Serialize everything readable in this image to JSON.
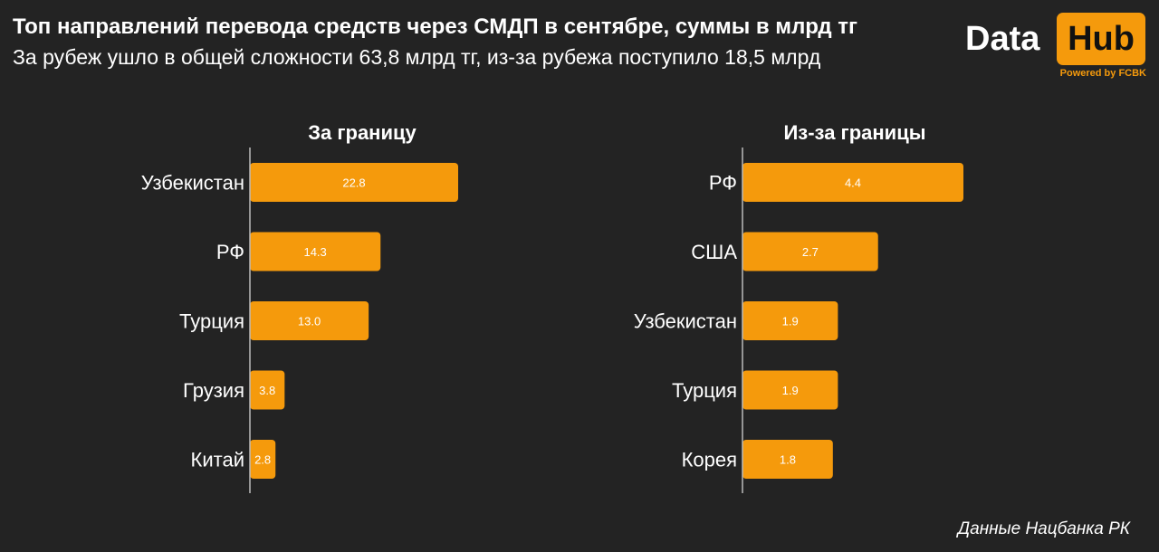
{
  "header": {
    "title": "Топ направлений перевода средств через СМДП в сентябре, суммы в млрд тг",
    "subtitle": "За рубеж ушло в общей сложности 63,8 млрд тг, из-за рубежа поступило 18,5 млрд"
  },
  "logo": {
    "word1": "Data",
    "word2": "Hub",
    "tagline": "Powered by FCBK"
  },
  "source": "Данные Нацбанка РК",
  "colors": {
    "background": "#232323",
    "bar": "#f59a0c",
    "text": "#ffffff",
    "axis": "#bbbbbb"
  },
  "chart_data": [
    {
      "type": "bar",
      "orientation": "horizontal",
      "title": "За границу",
      "categories": [
        "Узбекистан",
        "РФ",
        "Турция",
        "Грузия",
        "Китай"
      ],
      "values": [
        22.8,
        14.3,
        13.0,
        3.8,
        2.8
      ],
      "value_labels": [
        "22.8",
        "14.3",
        "13.0",
        "3.8",
        "2.8"
      ],
      "xlim": [
        0,
        22.8
      ]
    },
    {
      "type": "bar",
      "orientation": "horizontal",
      "title": "Из-за границы",
      "categories": [
        "РФ",
        "США",
        "Узбекистан",
        "Турция",
        "Корея"
      ],
      "values": [
        4.4,
        2.7,
        1.9,
        1.9,
        1.8
      ],
      "value_labels": [
        "4.4",
        "2.7",
        "1.9",
        "1.9",
        "1.8"
      ],
      "xlim": [
        0,
        4.4
      ]
    }
  ]
}
